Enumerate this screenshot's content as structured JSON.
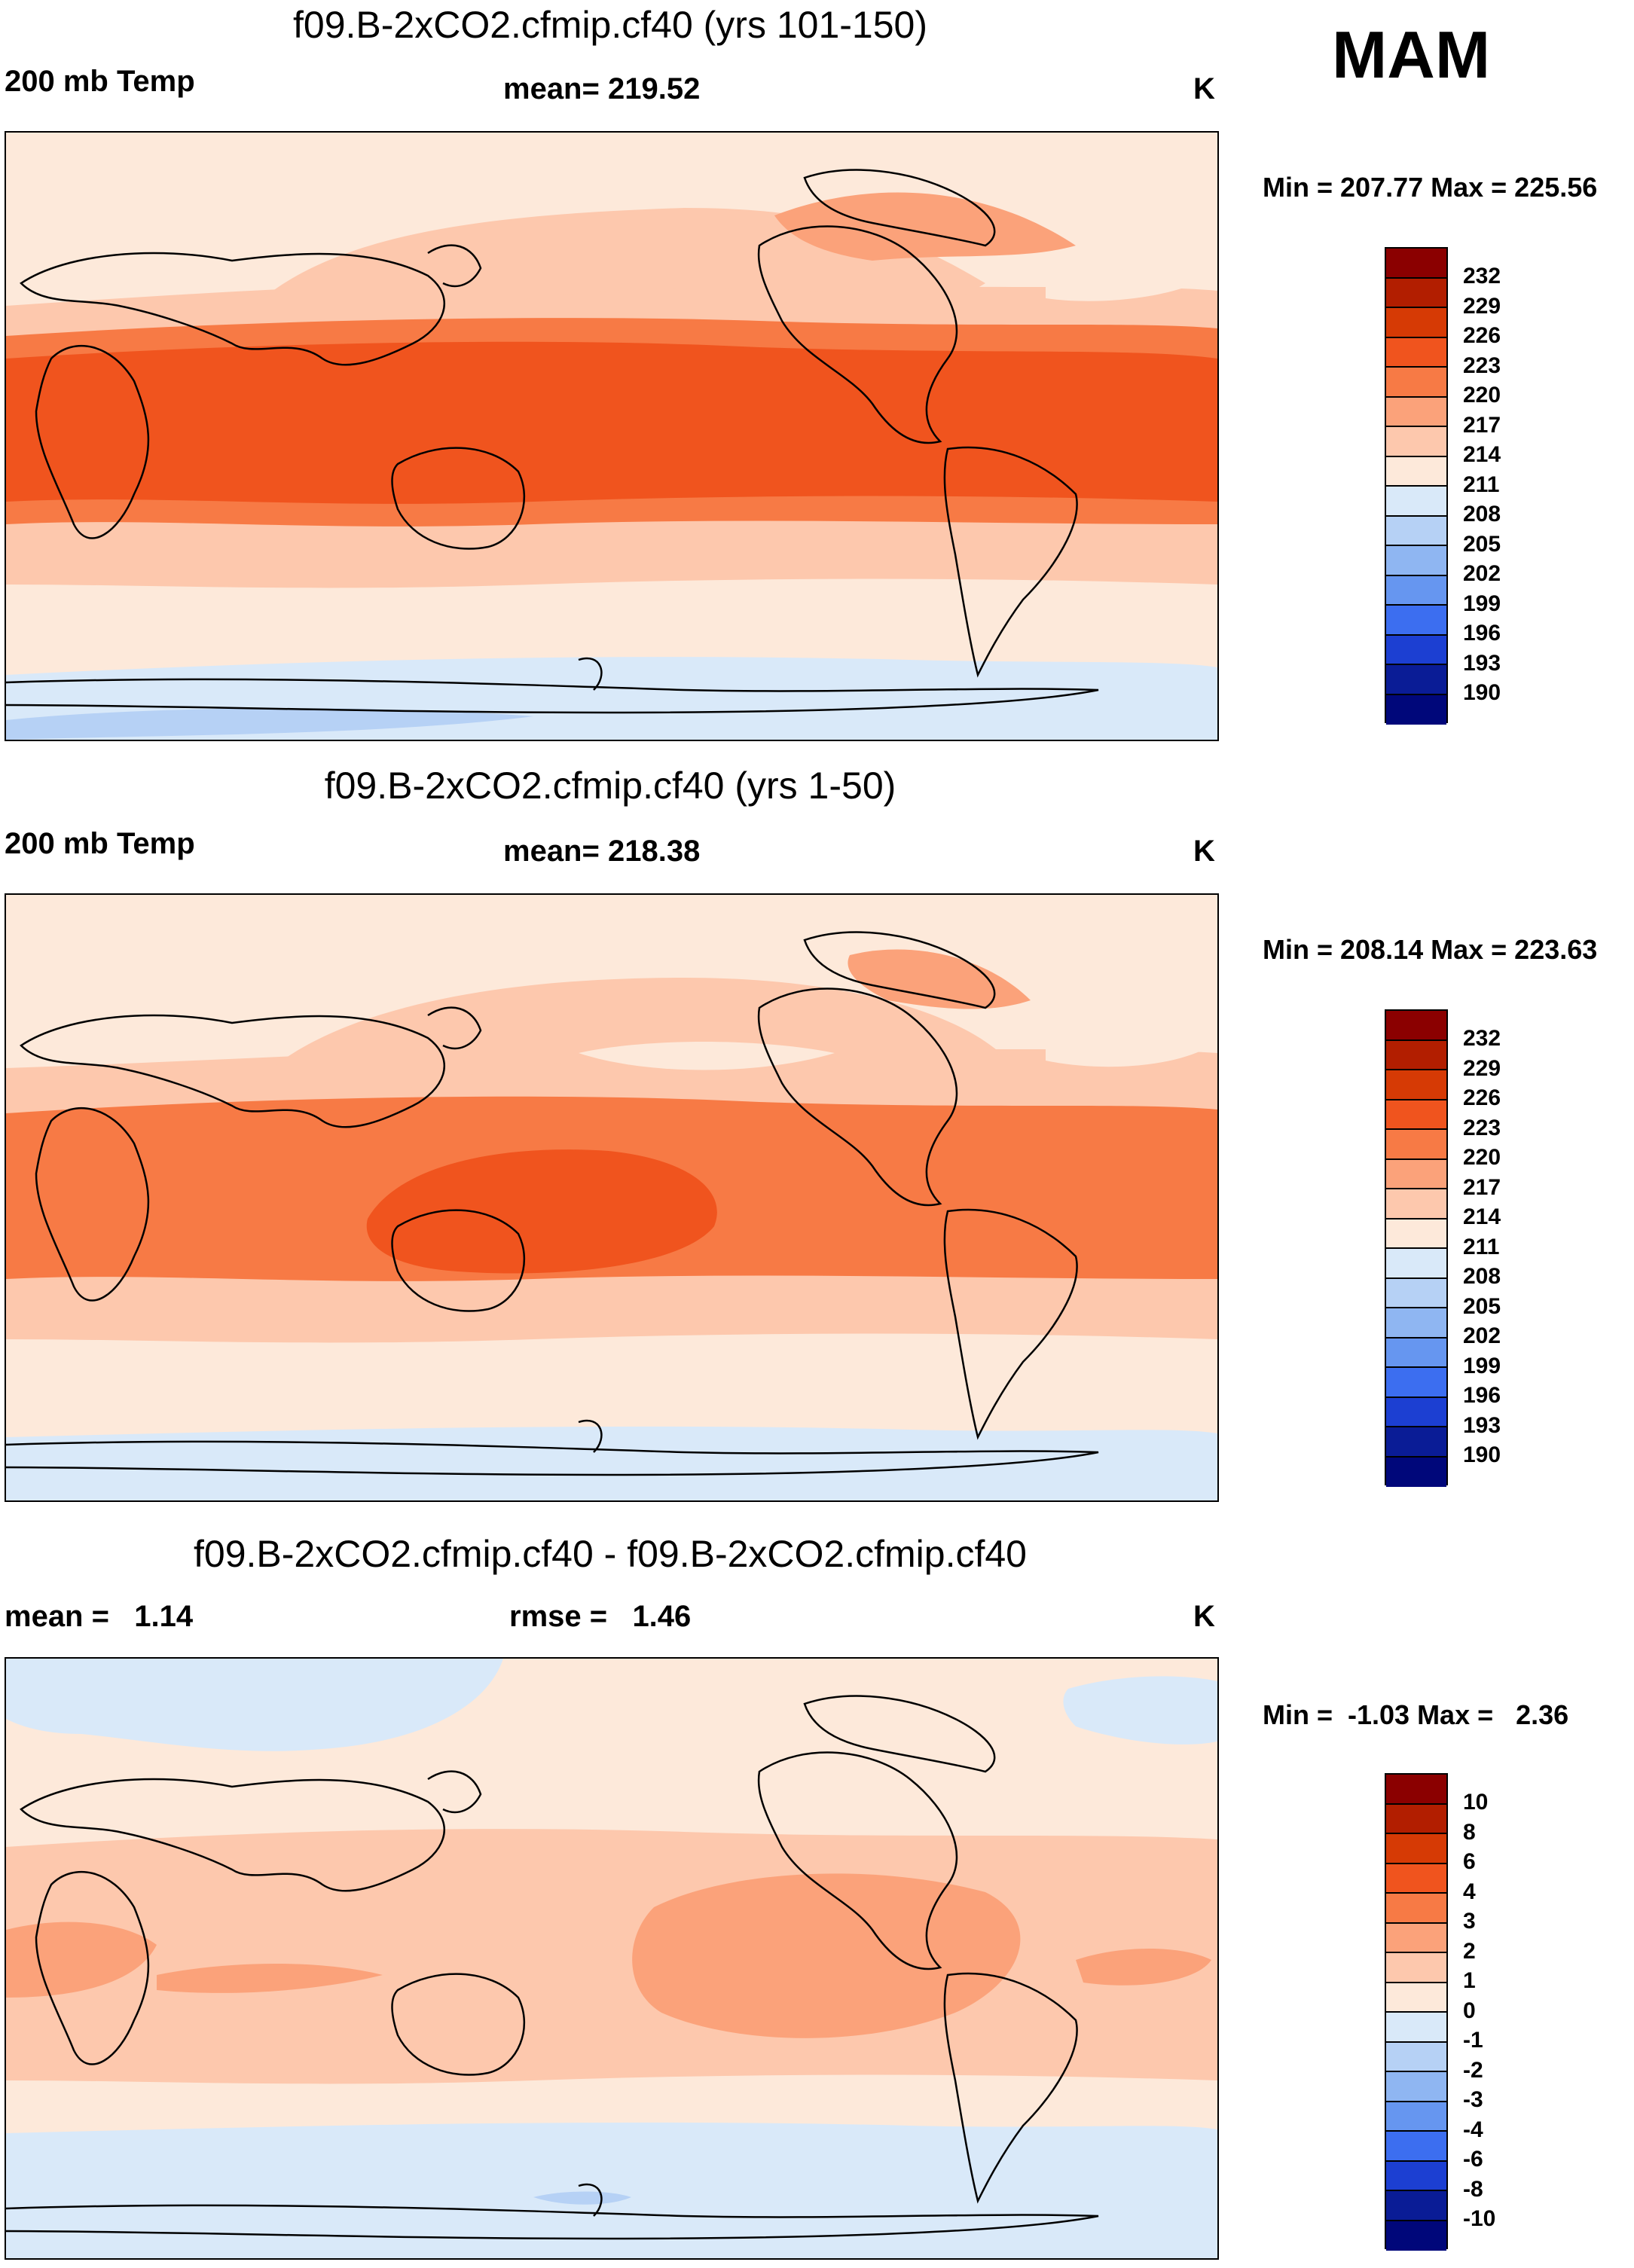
{
  "season": "MAM",
  "panels": [
    {
      "title": "f09.B-2xCO2.cfmip.cf40 (yrs 101-150)",
      "left_label": "200 mb Temp",
      "center_label": "mean= 219.52",
      "units": "K",
      "minmax": "Min = 207.77 Max = 225.56",
      "colorbar_labels": [
        "232",
        "229",
        "226",
        "223",
        "220",
        "217",
        "214",
        "211",
        "208",
        "205",
        "202",
        "199",
        "196",
        "193",
        "190"
      ]
    },
    {
      "title": "f09.B-2xCO2.cfmip.cf40 (yrs 1-50)",
      "left_label": "200 mb Temp",
      "center_label": "mean= 218.38",
      "units": "K",
      "minmax": "Min = 208.14 Max = 223.63",
      "colorbar_labels": [
        "232",
        "229",
        "226",
        "223",
        "220",
        "217",
        "214",
        "211",
        "208",
        "205",
        "202",
        "199",
        "196",
        "193",
        "190"
      ]
    },
    {
      "title": "f09.B-2xCO2.cfmip.cf40 - f09.B-2xCO2.cfmip.cf40",
      "left_label": "mean =   1.14",
      "center_label": "rmse =   1.46",
      "units": "K",
      "minmax": "Min =  -1.03 Max =   2.36",
      "colorbar_labels": [
        "10",
        "8",
        "6",
        "4",
        "3",
        "2",
        "1",
        "0",
        "-1",
        "-2",
        "-3",
        "-4",
        "-6",
        "-8",
        "-10"
      ]
    }
  ],
  "colors": {
    "scale": [
      "#8b0000",
      "#b21e00",
      "#d63a05",
      "#f0541e",
      "#f77a45",
      "#fba27a",
      "#fdc8ad",
      "#fde9da",
      "#d9e9f9",
      "#b6d1f5",
      "#8fb6f2",
      "#6696f0",
      "#3c6ef0",
      "#1c3fd2",
      "#0a1c96",
      "#00077a"
    ],
    "land": "#000000"
  }
}
